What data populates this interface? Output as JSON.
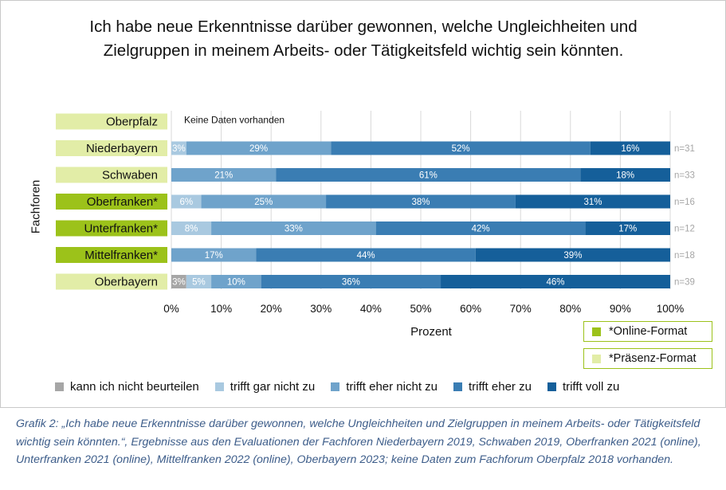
{
  "chart_data": {
    "type": "bar",
    "orientation": "horizontal-stacked-percent",
    "title": "Ich habe neue Erkenntnisse darüber gewonnen, welche Ungleichheiten und Zielgruppen in meinem Arbeits- oder Tätigkeitsfeld wichtig sein könnten.",
    "xlabel": "Prozent",
    "ylabel": "Fachforen",
    "xlim": [
      0,
      100
    ],
    "xticks": [
      "0%",
      "10%",
      "20%",
      "30%",
      "40%",
      "50%",
      "60%",
      "70%",
      "80%",
      "90%",
      "100%"
    ],
    "grid": "vertical",
    "categories": [
      "Oberpfalz",
      "Niederbayern",
      "Schwaben",
      "Oberfranken*",
      "Unterfranken*",
      "Mittelfranken*",
      "Oberbayern"
    ],
    "category_format": [
      "praesenz",
      "praesenz",
      "praesenz",
      "online",
      "online",
      "online",
      "praesenz"
    ],
    "n_labels": [
      "",
      "n=31",
      "n=33",
      "n=16",
      "n=12",
      "n=18",
      "n=39"
    ],
    "no_data_note": "Keine Daten vorhanden",
    "series": [
      {
        "name": "kann ich nicht beurteilen",
        "color": "#a6a6a6",
        "values": [
          null,
          0,
          0,
          0,
          0,
          0,
          3
        ],
        "labels": [
          "",
          "",
          "",
          "",
          "",
          "",
          "3%"
        ]
      },
      {
        "name": "trifft gar nicht zu",
        "color": "#a9c9e0",
        "values": [
          null,
          3,
          0,
          6,
          8,
          0,
          5
        ],
        "labels": [
          "",
          "3%",
          "",
          "6%",
          "8%",
          "",
          "5%"
        ]
      },
      {
        "name": "trifft eher nicht zu",
        "color": "#6fa3cb",
        "values": [
          null,
          29,
          21,
          25,
          33,
          17,
          10
        ],
        "labels": [
          "",
          "29%",
          "21%",
          "25%",
          "33%",
          "17%",
          "10%"
        ]
      },
      {
        "name": "trifft eher zu",
        "color": "#3a7db3",
        "values": [
          null,
          52,
          61,
          38,
          42,
          44,
          36
        ],
        "labels": [
          "",
          "52%",
          "61%",
          "38%",
          "42%",
          "44%",
          "36%"
        ]
      },
      {
        "name": "trifft voll zu",
        "color": "#155f9a",
        "values": [
          null,
          16,
          18,
          31,
          17,
          39,
          46
        ],
        "labels": [
          "",
          "16%",
          "18%",
          "31%",
          "17%",
          "39%",
          "46%"
        ]
      }
    ],
    "format_legend": [
      {
        "label": "*Online-Format",
        "color": "#9cc21a"
      },
      {
        "label": "*Präsenz-Format",
        "color": "#e2eda7"
      }
    ],
    "legend_position": "bottom"
  },
  "caption": "Grafik 2: „Ich habe neue Erkenntnisse darüber gewonnen, welche Ungleichheiten und Zielgruppen in meinem Arbeits- oder Tätigkeitsfeld wichtig sein könnten.“, Ergebnisse aus den Evaluationen der Fachforen Niederbayern 2019, Schwaben 2019, Oberfranken 2021 (online), Unterfranken 2021 (online), Mittelfranken 2022 (online), Oberbayern 2023; keine Daten zum Fachforum Oberpfalz 2018 vorhanden."
}
